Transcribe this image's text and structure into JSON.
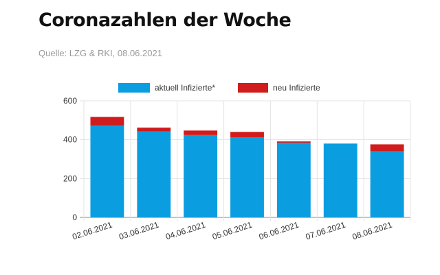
{
  "header": {
    "title": "Coronazahlen der Woche",
    "source": "Quelle: LZG & RKI, 08.06.2021"
  },
  "chart_data": {
    "type": "bar",
    "stacked": true,
    "categories": [
      "02.06.2021",
      "03.06.2021",
      "04.06.2021",
      "05.06.2021",
      "06.06.2021",
      "07.06.2021",
      "08.06.2021"
    ],
    "series": [
      {
        "name": "aktuell Infizierte*",
        "color": "#0a9ee0",
        "values": [
          472,
          442,
          424,
          413,
          384,
          380,
          340
        ]
      },
      {
        "name": "neu Infizierte",
        "color": "#d01c1c",
        "values": [
          45,
          20,
          23,
          27,
          7,
          0,
          36
        ]
      }
    ],
    "ylim": [
      0,
      600
    ],
    "yticks": [
      0,
      200,
      400,
      600
    ],
    "grid": true,
    "legend": "top"
  }
}
